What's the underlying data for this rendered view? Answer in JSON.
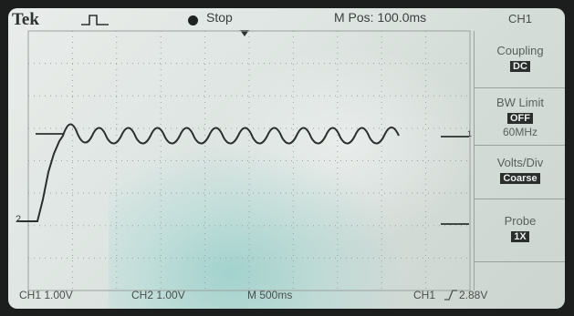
{
  "header": {
    "brand": "Tek",
    "run_state": "Stop",
    "horizontal_position": "M Pos: 100.0ms",
    "channel": "CH1"
  },
  "side_menu": {
    "coupling": {
      "title": "Coupling",
      "value": "DC"
    },
    "bw_limit": {
      "title": "BW Limit",
      "value": "OFF",
      "sub": "60MHz"
    },
    "volts_div": {
      "title": "Volts/Div",
      "value": "Coarse"
    },
    "probe": {
      "title": "Probe",
      "value": "1X"
    }
  },
  "footer": {
    "ch1_scale": "CH1    1.00V",
    "ch2_scale": "CH2    1.00V",
    "timebase": "M 500ms",
    "trigger": "CH1",
    "trigger_level": "2.88V"
  },
  "markers": {
    "ch2_ground": "2",
    "ch1_ref": "1"
  },
  "colors": {
    "trace": "#2b302e",
    "graticule": "#9aa19e",
    "screen": "#e4e9e7"
  }
}
